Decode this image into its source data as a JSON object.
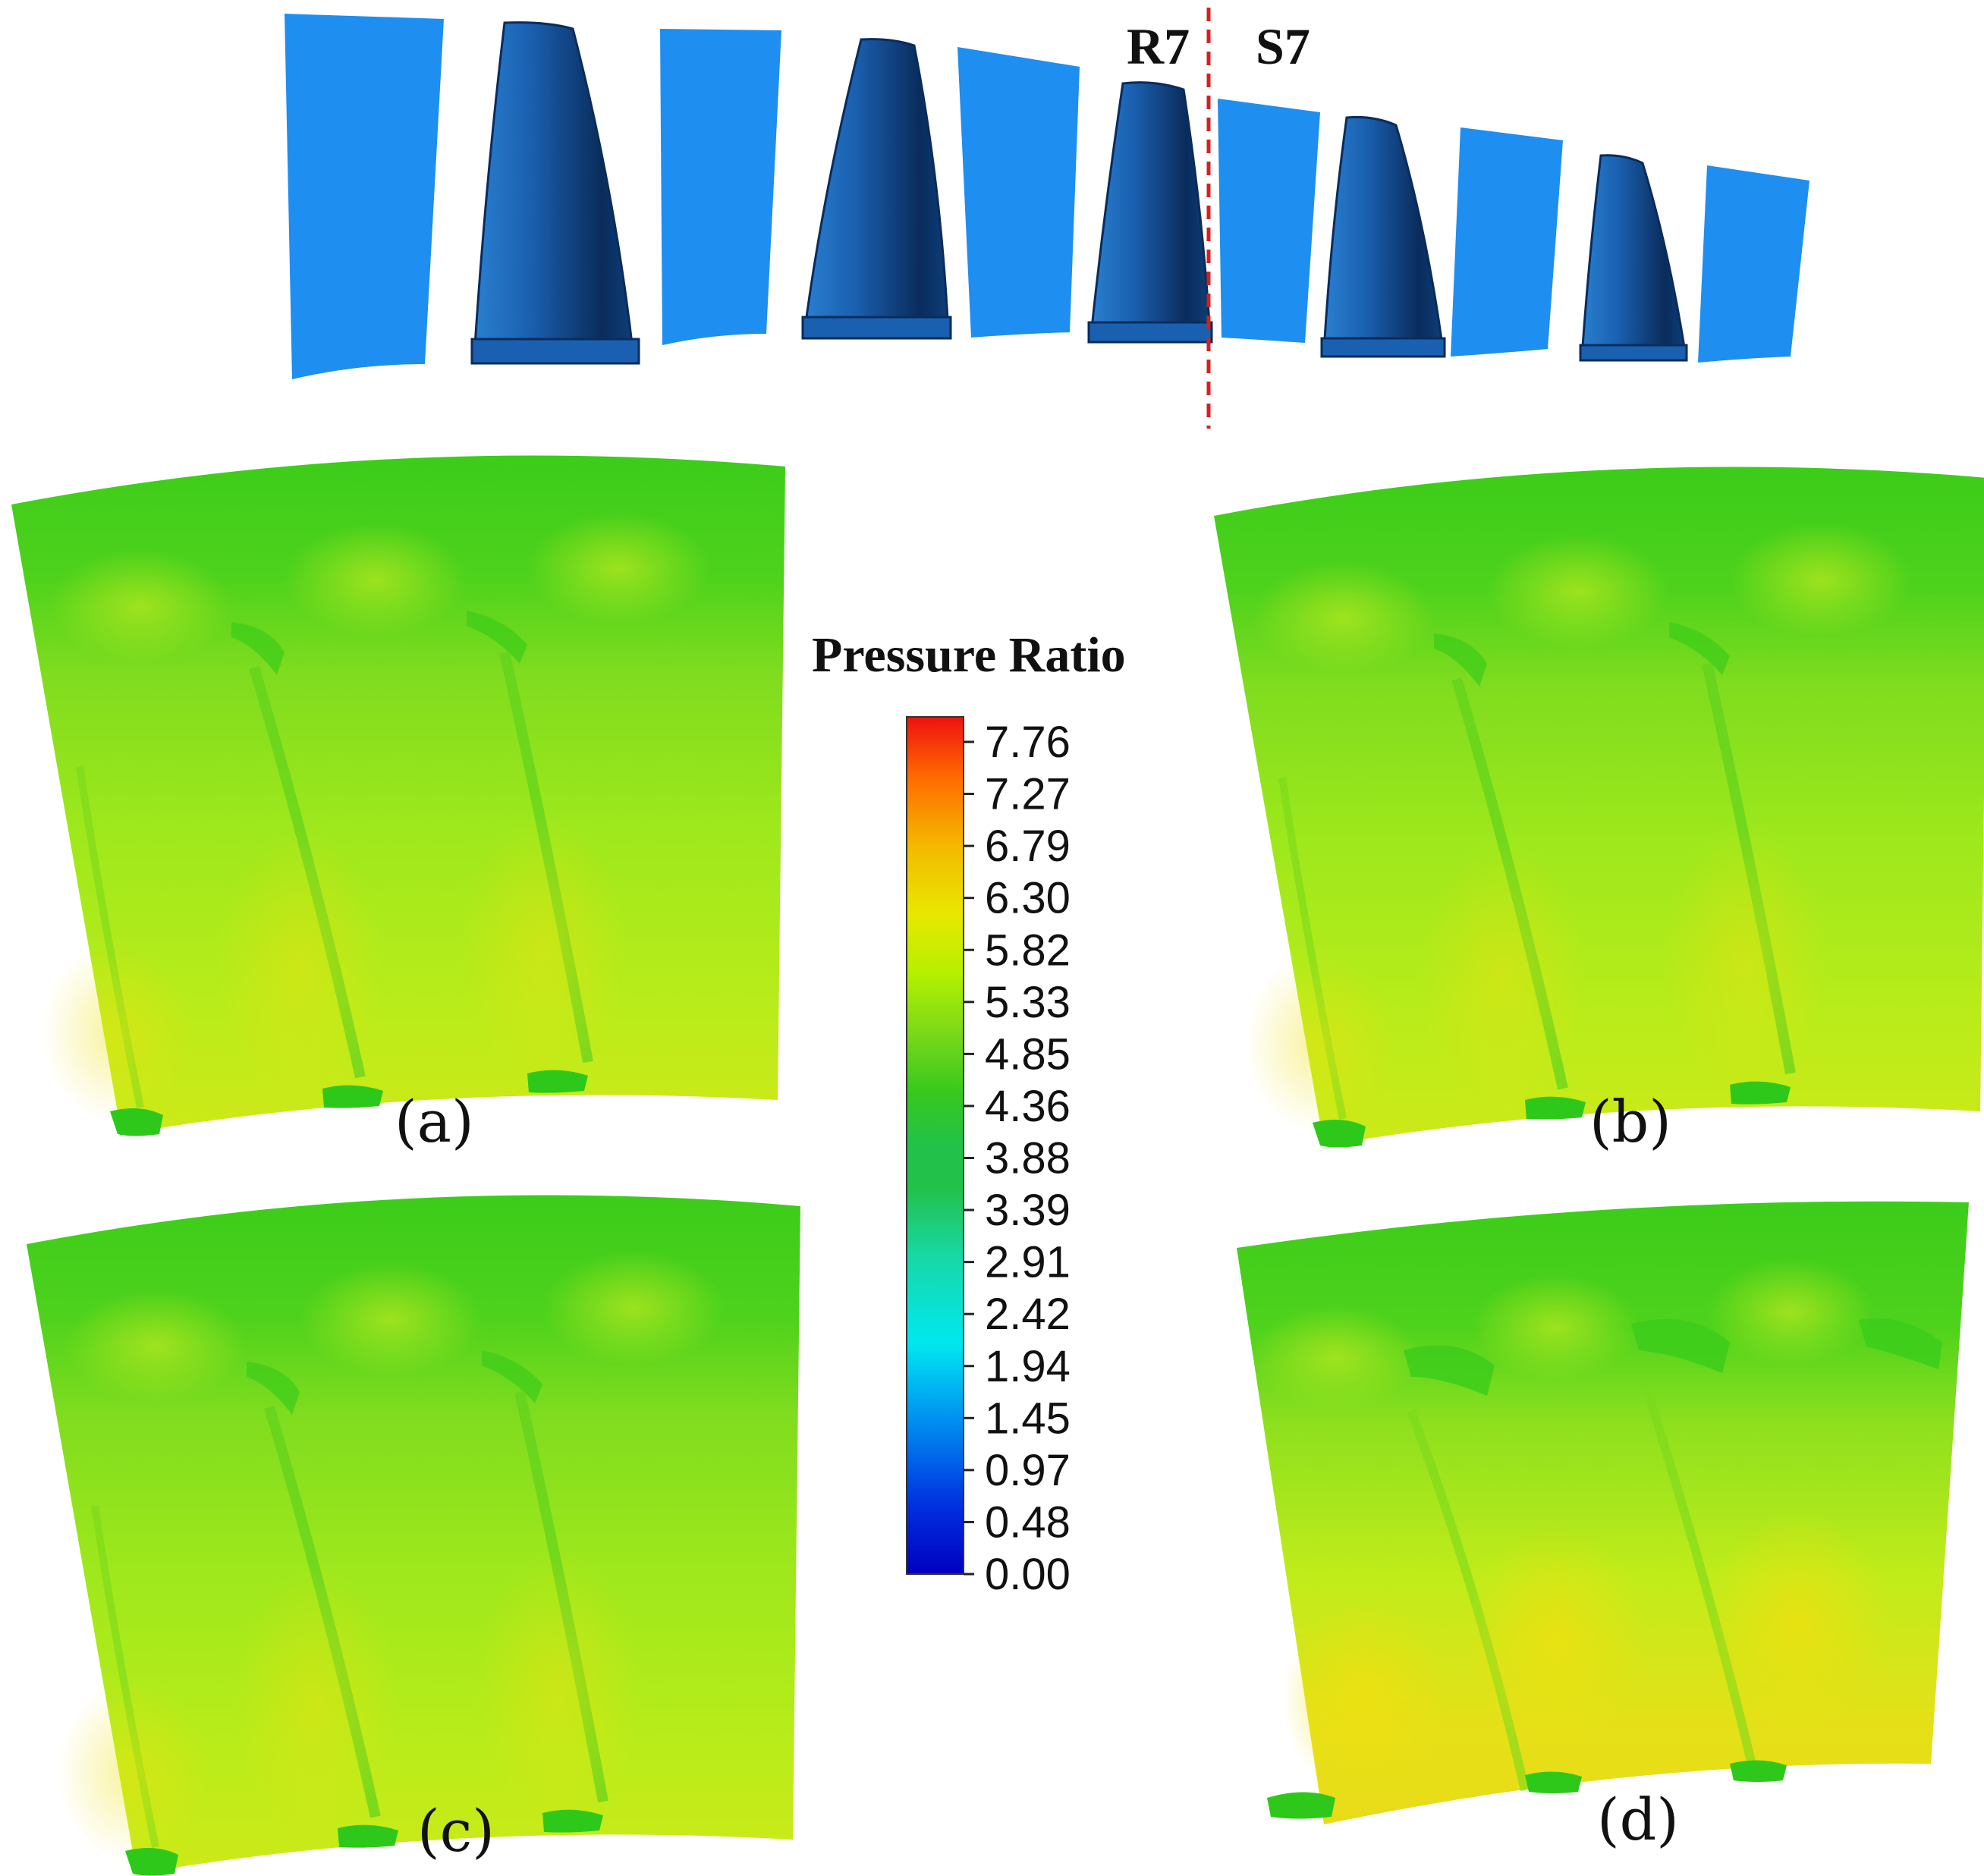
{
  "markers": {
    "rotor": "R7",
    "stator": "S7"
  },
  "legend": {
    "title": "Pressure Ratio",
    "min": 0.0,
    "max": 7.76,
    "ticks": [
      "7.76",
      "7.27",
      "6.79",
      "6.30",
      "5.82",
      "5.33",
      "4.85",
      "4.36",
      "3.88",
      "3.39",
      "2.91",
      "2.42",
      "1.94",
      "1.45",
      "0.97",
      "0.48",
      "0.00"
    ],
    "colors": [
      "#ee1111",
      "#ff6a00",
      "#f5b800",
      "#e8e800",
      "#b4f000",
      "#7ad81a",
      "#36c81e",
      "#22c24a",
      "#18d8a6",
      "#00e8f0",
      "#0090f0",
      "#0030e0",
      "#0000c0"
    ]
  },
  "panels": [
    {
      "label": "(a)"
    },
    {
      "label": "(b)"
    },
    {
      "label": "(c)"
    },
    {
      "label": "(d)"
    }
  ],
  "colors": {
    "stator_blade": "#1e8ef0",
    "rotor_dark": "#0a2c5c",
    "rotor_mid": "#1a60b0",
    "rotor_light": "#2a7fd0",
    "section_line": "#d42020",
    "contour_top": "#3ccc1a",
    "contour_body": "#9ee81c",
    "contour_hot": "#e6e018"
  }
}
